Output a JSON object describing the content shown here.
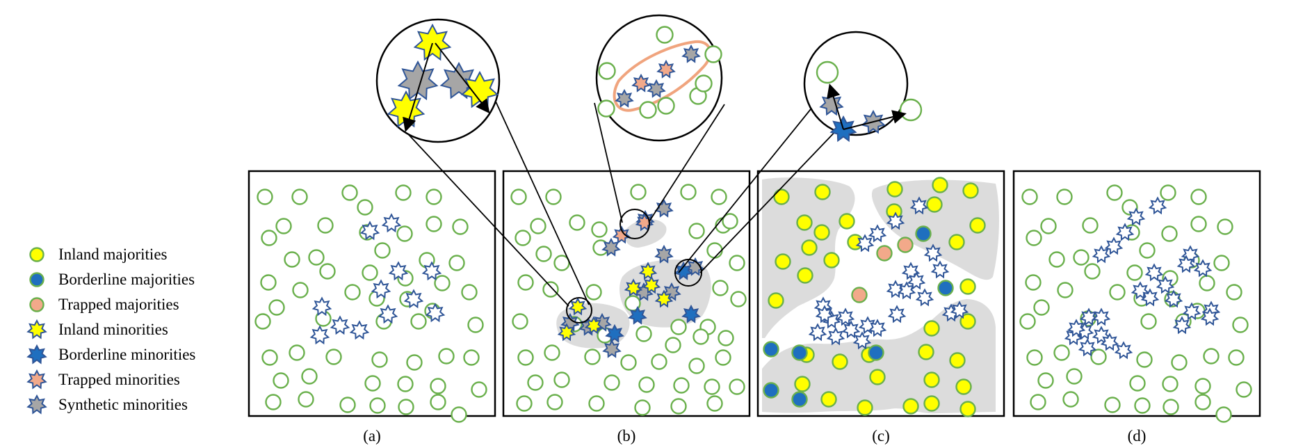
{
  "legend": [
    {
      "key": "inland_maj",
      "label": "Inland majorities",
      "shape": "circle",
      "fill": "#ffff00",
      "stroke": "#6ab04c"
    },
    {
      "key": "border_maj",
      "label": "Borderline majorities",
      "shape": "circle",
      "fill": "#1f6fbf",
      "stroke": "#6ab04c"
    },
    {
      "key": "trapped_maj",
      "label": "Trapped majorities",
      "shape": "circle",
      "fill": "#f2a98a",
      "stroke": "#6ab04c"
    },
    {
      "key": "inland_min",
      "label": "Inland minorities",
      "shape": "star",
      "fill": "#ffff00",
      "stroke": "#2f5597"
    },
    {
      "key": "border_min",
      "label": "Borderline minorities",
      "shape": "star",
      "fill": "#1f6fbf",
      "stroke": "#2f5597"
    },
    {
      "key": "trapped_min",
      "label": "Trapped minorities",
      "shape": "star",
      "fill": "#f2a98a",
      "stroke": "#2f5597"
    },
    {
      "key": "synth_min",
      "label": "Synthetic minorities",
      "shape": "star",
      "fill": "#a6a6a6",
      "stroke": "#2f5597"
    }
  ],
  "panels": [
    {
      "id": "a",
      "label": "(a)"
    },
    {
      "id": "b",
      "label": "(b)"
    },
    {
      "id": "c",
      "label": "(c)"
    },
    {
      "id": "d",
      "label": "(d)"
    }
  ],
  "colors": {
    "majority_stroke": "#6ab04c",
    "minority_stroke": "#2f5597",
    "inland": "#ffff00",
    "borderline": "#1f6fbf",
    "trapped": "#f2a98a",
    "synthetic": "#a6a6a6",
    "region_fill": "#dcdcdc",
    "trapped_outline": "#f0a47e"
  }
}
